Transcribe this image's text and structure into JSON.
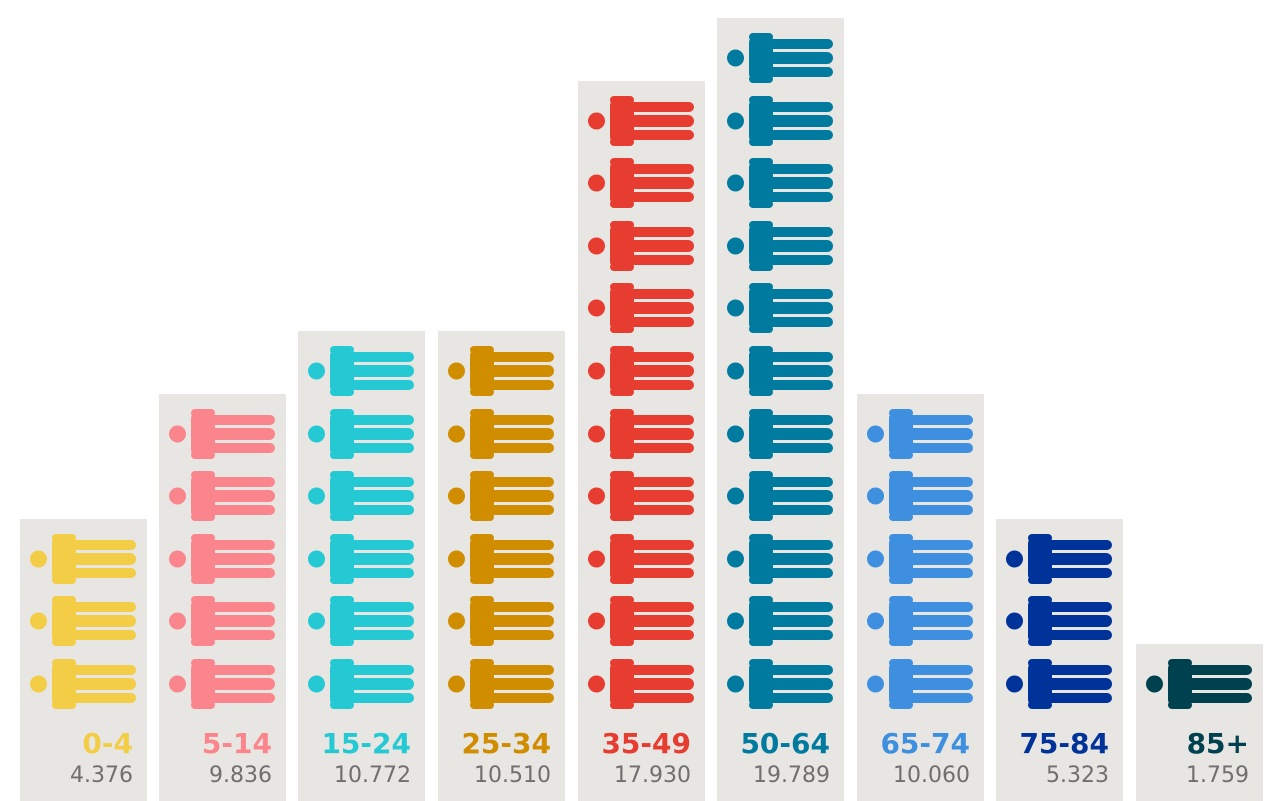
{
  "chart_data": {
    "type": "bar",
    "title": "",
    "categories": [
      "0-4",
      "5-14",
      "15-24",
      "25-34",
      "35-49",
      "50-64",
      "65-74",
      "75-84",
      "85+"
    ],
    "value_labels": [
      "4.376",
      "9.836",
      "10.772",
      "10.510",
      "17.930",
      "19.789",
      "10.060",
      "5.323",
      "1.759"
    ],
    "values": [
      4.376,
      9.836,
      10.772,
      10.51,
      17.93,
      19.789,
      10.06,
      5.323,
      1.759
    ],
    "icon_counts": [
      3,
      5,
      6,
      6,
      10,
      11,
      5,
      3,
      1
    ],
    "colors": [
      "#f3cd45",
      "#fb858c",
      "#25c9d3",
      "#d08d00",
      "#e73c30",
      "#007a9e",
      "#3f8fe0",
      "#00339a",
      "#00414f"
    ],
    "icon": "person-icon",
    "background_color": "#e8e6e2",
    "value_color": "#6f6f6f"
  }
}
